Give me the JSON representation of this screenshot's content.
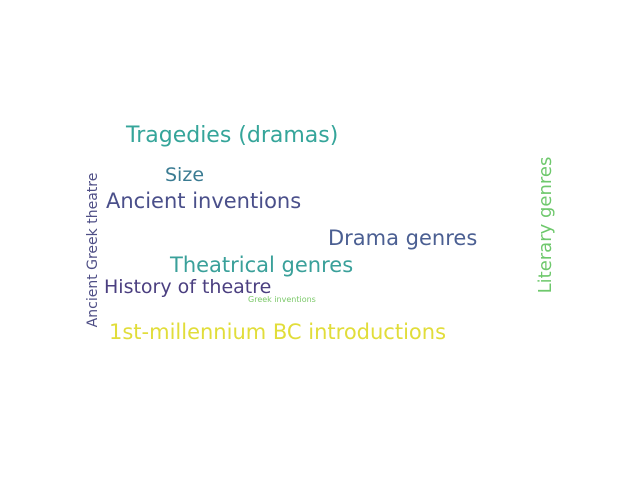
{
  "words": [
    {
      "text": "Tragedies (dramas)",
      "color": "#35a59a"
    },
    {
      "text": "Size",
      "color": "#3a7b92"
    },
    {
      "text": "Ancient inventions",
      "color": "#4a4f8a"
    },
    {
      "text": "Drama genres",
      "color": "#4b5f92"
    },
    {
      "text": "Theatrical genres",
      "color": "#3aa09a"
    },
    {
      "text": "History of theatre",
      "color": "#4b3f80"
    },
    {
      "text": "Greek inventions",
      "color": "#7cc96a"
    },
    {
      "text": "1st-millennium BC introductions",
      "color": "#e1dd3a"
    },
    {
      "text": "Ancient Greek theatre",
      "color": "#4f4f86"
    },
    {
      "text": "Literary genres",
      "color": "#6ec86c"
    }
  ]
}
